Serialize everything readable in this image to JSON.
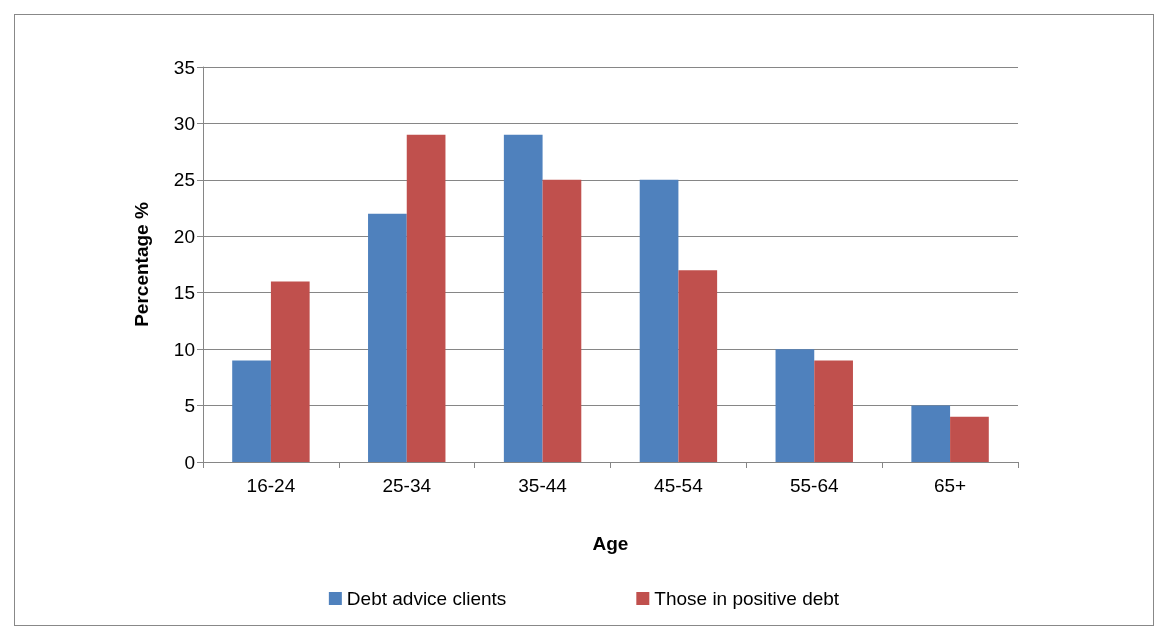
{
  "chart_data": {
    "type": "bar",
    "xlabel": "Age",
    "ylabel": "Percentage %",
    "categories": [
      "16-24",
      "25-34",
      "35-44",
      "45-54",
      "55-64",
      "65+"
    ],
    "series": [
      {
        "name": "Debt advice clients",
        "color": "#4f81bd",
        "values": [
          9,
          22,
          29,
          25,
          10,
          5
        ]
      },
      {
        "name": "Those in positive debt",
        "color": "#c0504d",
        "values": [
          16,
          29,
          25,
          17,
          9,
          4
        ]
      }
    ],
    "ylim": [
      0,
      35
    ],
    "yticks": [
      0,
      5,
      10,
      15,
      20,
      25,
      30,
      35
    ],
    "grid": "y",
    "legend": "bottom"
  }
}
